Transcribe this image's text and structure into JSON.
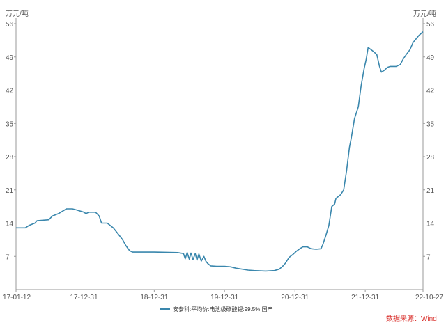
{
  "chart_data": {
    "type": "line",
    "unit_label": "万元/吨",
    "source": "数据来源：Wind",
    "ylim": [
      0,
      56
    ],
    "y_ticks": [
      {
        "value": 7,
        "label": "7"
      },
      {
        "value": 14,
        "label": "14"
      },
      {
        "value": 21,
        "label": "21"
      },
      {
        "value": 28,
        "label": "28"
      },
      {
        "value": 35,
        "label": "35"
      },
      {
        "value": 42,
        "label": "42"
      },
      {
        "value": 49,
        "label": "49"
      },
      {
        "value": 56,
        "label": "56"
      }
    ],
    "xlim": [
      "2017-01-12",
      "2022-10-27"
    ],
    "x_ticks": [
      {
        "date": "2017-01-12",
        "label": "17-01-12"
      },
      {
        "date": "2017-12-31",
        "label": "17-12-31"
      },
      {
        "date": "2018-12-31",
        "label": "18-12-31"
      },
      {
        "date": "2019-12-31",
        "label": "19-12-31"
      },
      {
        "date": "2020-12-31",
        "label": "20-12-31"
      },
      {
        "date": "2021-12-31",
        "label": "21-12-31"
      },
      {
        "date": "2022-10-27",
        "label": "22-10-27"
      }
    ],
    "grid": false,
    "legend_position": "bottom",
    "series": [
      {
        "name": "安泰科:平均价:电池级碳酸锂:99.5%:国产",
        "color": "#3a87ad",
        "points": [
          [
            "2017-01-12",
            13.0
          ],
          [
            "2017-03-01",
            13.0
          ],
          [
            "2017-03-20",
            13.5
          ],
          [
            "2017-04-20",
            14.0
          ],
          [
            "2017-05-01",
            14.5
          ],
          [
            "2017-07-01",
            14.7
          ],
          [
            "2017-07-20",
            15.5
          ],
          [
            "2017-08-20",
            16.0
          ],
          [
            "2017-09-10",
            16.5
          ],
          [
            "2017-10-01",
            17.0
          ],
          [
            "2017-11-01",
            17.0
          ],
          [
            "2017-11-20",
            16.8
          ],
          [
            "2017-12-31",
            16.3
          ],
          [
            "2018-01-10",
            16.0
          ],
          [
            "2018-01-25",
            16.3
          ],
          [
            "2018-03-01",
            16.3
          ],
          [
            "2018-03-20",
            15.5
          ],
          [
            "2018-04-01",
            14.0
          ],
          [
            "2018-05-01",
            14.0
          ],
          [
            "2018-06-01",
            13.0
          ],
          [
            "2018-07-01",
            11.5
          ],
          [
            "2018-07-20",
            10.5
          ],
          [
            "2018-08-05",
            9.3
          ],
          [
            "2018-08-25",
            8.2
          ],
          [
            "2018-09-10",
            7.9
          ],
          [
            "2018-12-31",
            7.9
          ],
          [
            "2019-05-01",
            7.8
          ],
          [
            "2019-06-01",
            7.6
          ],
          [
            "2019-06-10",
            6.5
          ],
          [
            "2019-06-20",
            7.8
          ],
          [
            "2019-07-01",
            6.4
          ],
          [
            "2019-07-10",
            7.7
          ],
          [
            "2019-07-20",
            6.3
          ],
          [
            "2019-08-01",
            7.6
          ],
          [
            "2019-08-10",
            6.2
          ],
          [
            "2019-08-20",
            7.5
          ],
          [
            "2019-09-01",
            6.0
          ],
          [
            "2019-09-15",
            7.0
          ],
          [
            "2019-09-25",
            6.0
          ],
          [
            "2019-10-05",
            5.5
          ],
          [
            "2019-10-20",
            5.0
          ],
          [
            "2019-11-20",
            4.9
          ],
          [
            "2019-12-31",
            4.9
          ],
          [
            "2020-02-01",
            4.8
          ],
          [
            "2020-03-01",
            4.5
          ],
          [
            "2020-05-01",
            4.1
          ],
          [
            "2020-06-01",
            4.0
          ],
          [
            "2020-08-01",
            3.9
          ],
          [
            "2020-09-15",
            4.0
          ],
          [
            "2020-10-10",
            4.3
          ],
          [
            "2020-10-25",
            4.8
          ],
          [
            "2020-11-10",
            5.5
          ],
          [
            "2020-12-01",
            6.8
          ],
          [
            "2020-12-20",
            7.4
          ],
          [
            "2021-01-05",
            8.0
          ],
          [
            "2021-01-25",
            8.6
          ],
          [
            "2021-02-10",
            9.0
          ],
          [
            "2021-03-05",
            9.0
          ],
          [
            "2021-03-25",
            8.6
          ],
          [
            "2021-04-20",
            8.5
          ],
          [
            "2021-05-15",
            8.6
          ],
          [
            "2021-05-25",
            9.5
          ],
          [
            "2021-06-10",
            11.5
          ],
          [
            "2021-06-25",
            13.5
          ],
          [
            "2021-07-10",
            17.5
          ],
          [
            "2021-07-25",
            18.0
          ],
          [
            "2021-08-01",
            19.2
          ],
          [
            "2021-08-25",
            20.0
          ],
          [
            "2021-09-10",
            21.0
          ],
          [
            "2021-09-25",
            25.0
          ],
          [
            "2021-10-10",
            30.0
          ],
          [
            "2021-10-20",
            32.0
          ],
          [
            "2021-11-05",
            36.0
          ],
          [
            "2021-11-25",
            38.5
          ],
          [
            "2021-12-10",
            43.0
          ],
          [
            "2021-12-25",
            46.5
          ],
          [
            "2022-01-05",
            48.5
          ],
          [
            "2022-01-15",
            51.0
          ],
          [
            "2022-01-25",
            50.7
          ],
          [
            "2022-02-10",
            50.2
          ],
          [
            "2022-03-01",
            49.5
          ],
          [
            "2022-03-15",
            47.0
          ],
          [
            "2022-03-25",
            45.8
          ],
          [
            "2022-04-10",
            46.2
          ],
          [
            "2022-04-25",
            46.8
          ],
          [
            "2022-05-10",
            47.0
          ],
          [
            "2022-06-10",
            47.0
          ],
          [
            "2022-07-01",
            47.4
          ],
          [
            "2022-07-15",
            48.5
          ],
          [
            "2022-08-01",
            49.5
          ],
          [
            "2022-08-20",
            50.5
          ],
          [
            "2022-09-05",
            52.0
          ],
          [
            "2022-10-05",
            53.5
          ],
          [
            "2022-10-27",
            54.3
          ]
        ]
      }
    ]
  }
}
